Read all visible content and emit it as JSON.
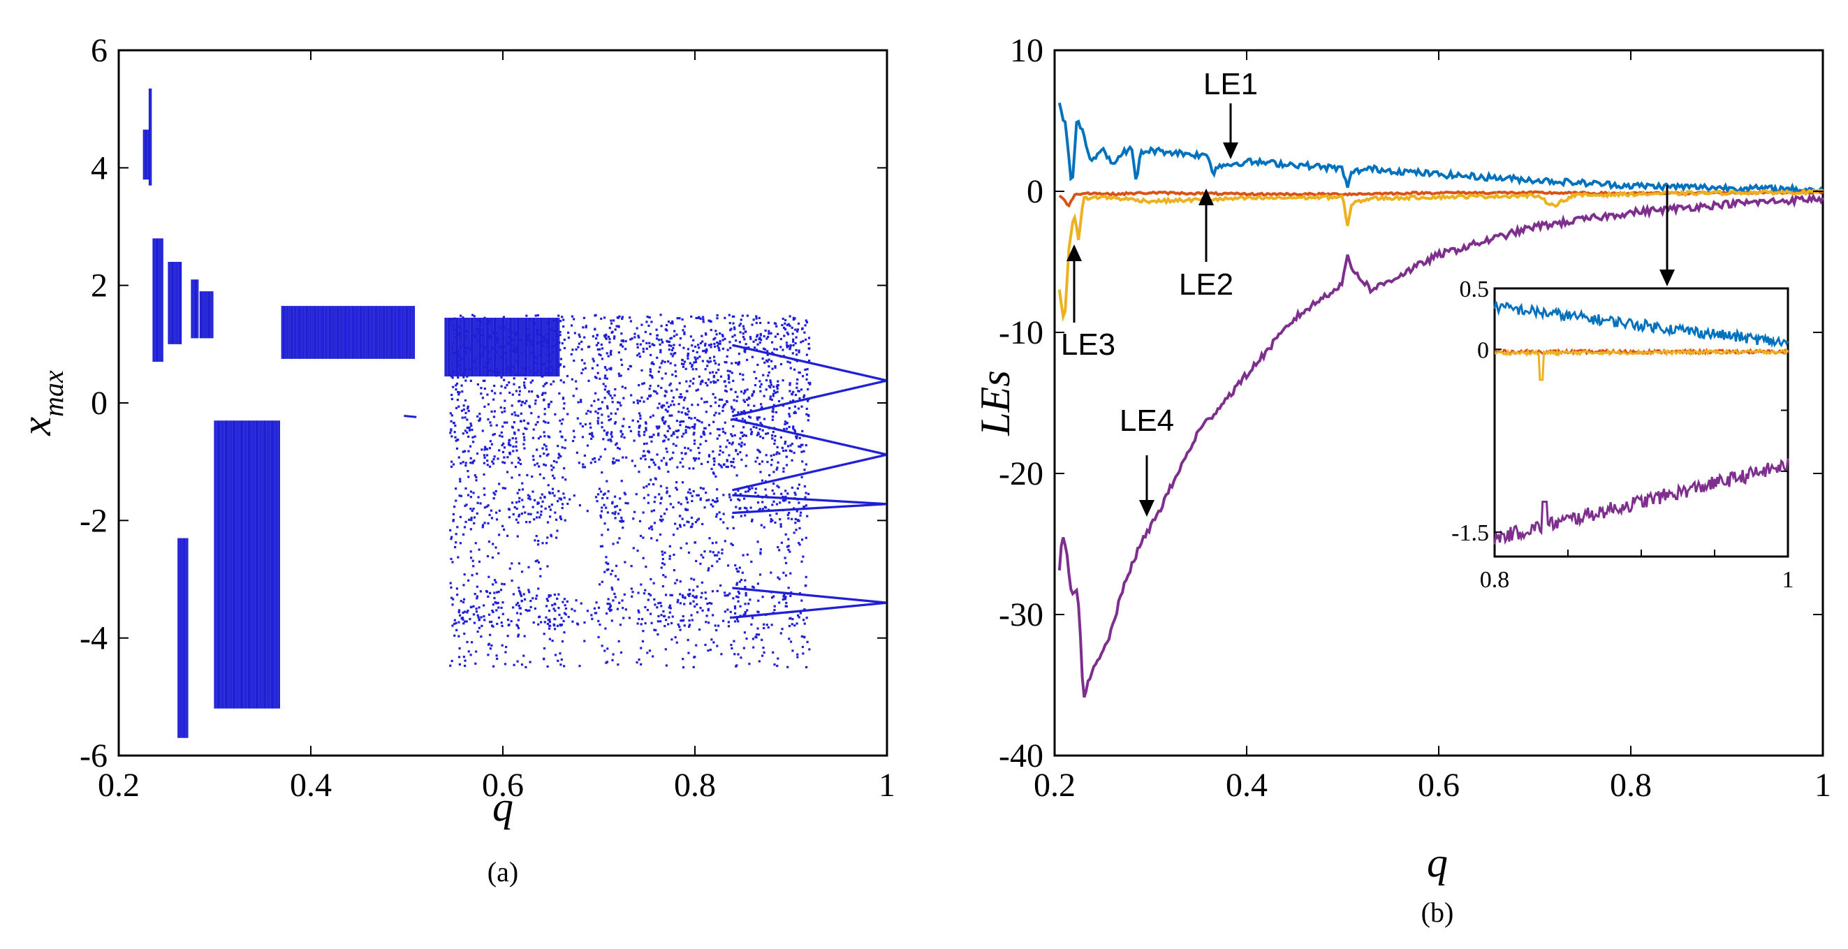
{
  "chart_data": [
    {
      "type": "scatter",
      "panel": "a",
      "caption": "(a)",
      "xlabel": "q",
      "ylabel": "x",
      "ylabel_sub": "max",
      "xlim": [
        0.2,
        1.0
      ],
      "ylim": [
        -6,
        6
      ],
      "xticks": [
        0.2,
        0.4,
        0.6,
        0.8,
        1.0
      ],
      "xtick_labels": [
        "0.2",
        "0.4",
        "0.6",
        "0.8",
        "1"
      ],
      "yticks": [
        -6,
        -4,
        -2,
        0,
        2,
        4,
        6
      ],
      "ytick_labels": [
        "-6",
        "-4",
        "-2",
        "0",
        "2",
        "4",
        "6"
      ],
      "color": "#1f1fd6",
      "description_series": [
        {
          "name": "vertical bands",
          "segments": [
            {
              "q": [
                0.226,
                0.231
              ],
              "y": [
                3.8,
                4.65
              ]
            },
            {
              "q": [
                0.232,
                0.234
              ],
              "y": [
                3.7,
                5.35
              ]
            },
            {
              "q": [
                0.236,
                0.247
              ],
              "y": [
                0.7,
                2.8
              ]
            },
            {
              "q": [
                0.252,
                0.266
              ],
              "y": [
                1.0,
                2.4
              ]
            },
            {
              "q": [
                0.262,
                0.272
              ],
              "y": [
                -5.7,
                -2.3
              ]
            },
            {
              "q": [
                0.276,
                0.283
              ],
              "y": [
                1.1,
                2.1
              ]
            },
            {
              "q": [
                0.285,
                0.298
              ],
              "y": [
                1.1,
                1.9
              ]
            },
            {
              "q": [
                0.3,
                0.368
              ],
              "y": [
                -5.2,
                -0.3
              ]
            },
            {
              "q": [
                0.37,
                0.508
              ],
              "y": [
                0.75,
                1.65
              ]
            },
            {
              "q": [
                0.54,
                0.66
              ],
              "y": [
                0.45,
                1.45
              ]
            }
          ]
        },
        {
          "name": "chaotic region",
          "q_range": [
            0.545,
            0.92
          ],
          "y_range": [
            -4.6,
            1.6
          ]
        },
        {
          "name": "converging branches",
          "q_end": 1.0,
          "y_values": [
            0.38,
            -0.88,
            -1.72,
            -3.4
          ]
        }
      ]
    },
    {
      "type": "line",
      "panel": "b",
      "caption": "(b)",
      "xlabel": "q",
      "ylabel": "LEs",
      "xlim": [
        0.2,
        1.0
      ],
      "ylim": [
        -40,
        10
      ],
      "xticks": [
        0.2,
        0.4,
        0.6,
        0.8,
        1.0
      ],
      "xtick_labels": [
        "0.2",
        "0.4",
        "0.6",
        "0.8",
        "1"
      ],
      "yticks": [
        -40,
        -30,
        -20,
        -10,
        0,
        10
      ],
      "ytick_labels": [
        "-40",
        "-30",
        "-20",
        "-10",
        "0",
        "10"
      ],
      "series": [
        {
          "name": "LE1",
          "color": "#0072BD",
          "x": [
            0.205,
            0.212,
            0.218,
            0.223,
            0.228,
            0.238,
            0.25,
            0.262,
            0.27,
            0.28,
            0.285,
            0.29,
            0.3,
            0.32,
            0.36,
            0.365,
            0.37,
            0.4,
            0.45,
            0.5,
            0.505,
            0.51,
            0.53,
            0.6,
            0.7,
            0.8,
            0.9,
            1.0
          ],
          "y": [
            6.2,
            4.5,
            0.2,
            5.0,
            4.5,
            2.2,
            3.1,
            1.7,
            2.8,
            3.0,
            0.7,
            2.8,
            2.9,
            2.8,
            2.5,
            1.3,
            1.8,
            2.1,
            1.9,
            1.6,
            0.2,
            1.4,
            1.6,
            1.2,
            0.8,
            0.4,
            0.25,
            0.1
          ]
        },
        {
          "name": "LE2",
          "color": "#D95319",
          "x": [
            0.205,
            0.215,
            0.22,
            0.23,
            0.26,
            0.3,
            0.4,
            0.5,
            0.6,
            0.7,
            0.8,
            0.9,
            1.0
          ],
          "y": [
            -0.3,
            -1.0,
            -0.3,
            -0.1,
            -0.2,
            -0.1,
            -0.2,
            -0.2,
            -0.1,
            -0.1,
            -0.15,
            -0.1,
            -0.05
          ]
        },
        {
          "name": "LE3",
          "color": "#EDB120",
          "x": [
            0.205,
            0.21,
            0.215,
            0.22,
            0.225,
            0.23,
            0.25,
            0.3,
            0.4,
            0.5,
            0.505,
            0.51,
            0.53,
            0.6,
            0.7,
            0.72,
            0.74,
            0.8,
            0.9,
            1.0
          ],
          "y": [
            -7.0,
            -9.5,
            -4.0,
            -1.5,
            -3.5,
            -0.5,
            -0.4,
            -0.7,
            -0.5,
            -0.4,
            -2.5,
            -0.8,
            -0.5,
            -0.4,
            -0.3,
            -1.0,
            -0.3,
            -0.2,
            -0.1,
            -0.05
          ]
        },
        {
          "name": "LE4",
          "color": "#7E2F8E",
          "x": [
            0.205,
            0.208,
            0.212,
            0.218,
            0.224,
            0.23,
            0.24,
            0.255,
            0.27,
            0.28,
            0.29,
            0.31,
            0.35,
            0.4,
            0.45,
            0.5,
            0.505,
            0.51,
            0.53,
            0.6,
            0.7,
            0.8,
            0.9,
            1.0
          ],
          "y": [
            -27.0,
            -24.0,
            -25.5,
            -28.5,
            -28.0,
            -35.8,
            -34.0,
            -32.0,
            -28.5,
            -26.5,
            -25.0,
            -22.5,
            -17.0,
            -13.0,
            -9.0,
            -6.5,
            -4.5,
            -5.5,
            -7.0,
            -4.5,
            -2.5,
            -1.5,
            -0.9,
            -0.5
          ]
        }
      ],
      "annotations": [
        {
          "text": "LE1",
          "target_q": 0.39,
          "target_y": 2.0
        },
        {
          "text": "LE2",
          "target_q": 0.365,
          "target_y": -0.2
        },
        {
          "text": "LE3",
          "target_q": 0.228,
          "target_y": -4.0
        },
        {
          "text": "LE4",
          "target_q": 0.305,
          "target_y": -23.0
        }
      ],
      "inset": {
        "xlim": [
          0.8,
          1.0
        ],
        "ylim": [
          -1.7,
          0.5
        ],
        "xtick_labels": [
          "0.8",
          "1"
        ],
        "ytick_labels": [
          "0.5",
          "0",
          "-1.5"
        ],
        "series": [
          {
            "name": "LE1",
            "start": 0.35,
            "end": 0.05
          },
          {
            "name": "LE2",
            "start": -0.02,
            "end": -0.02
          },
          {
            "name": "LE3",
            "start": -0.03,
            "end": -0.02,
            "dip_q": 0.832,
            "dip_y": -0.25
          },
          {
            "name": "LE4",
            "start": -1.55,
            "end": -0.95,
            "spike_q": 0.834,
            "spike_y": -1.25
          }
        ]
      }
    }
  ]
}
